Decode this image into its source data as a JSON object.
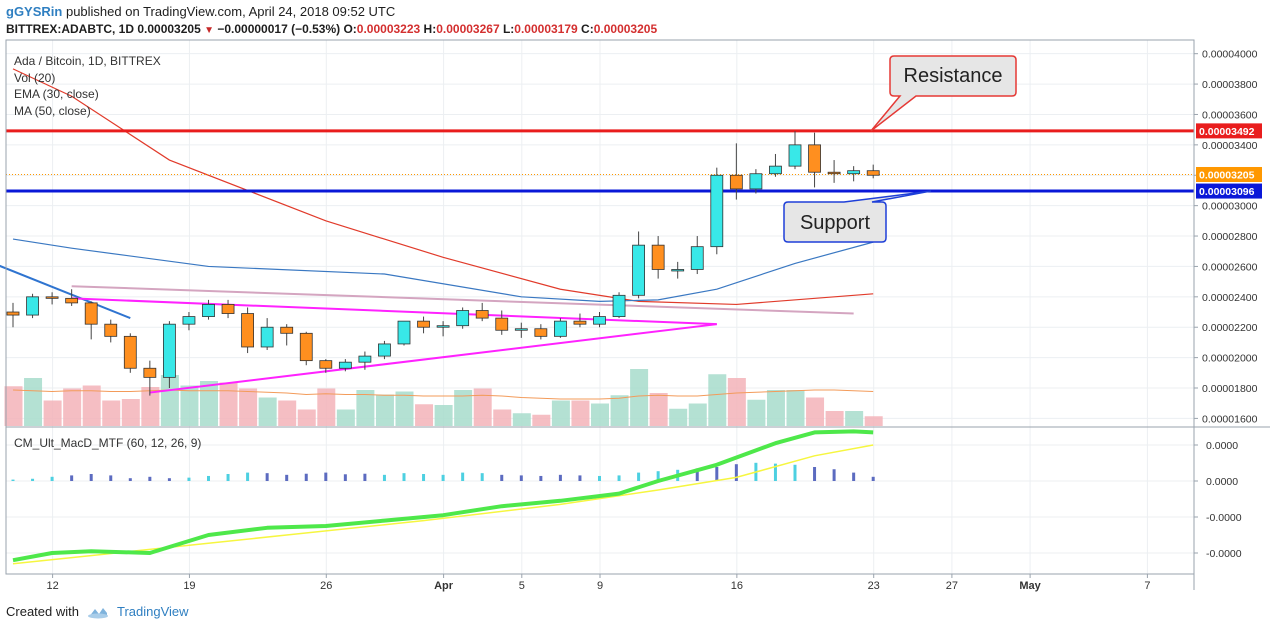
{
  "header": {
    "author": "gGYSRin",
    "published_text": "published on TradingView.com, April 24, 2018 09:52 UTC",
    "symbol": "BITTREX:ADABTC, 1D",
    "last": "0.00003205",
    "change": "−0.00000017 (−0.53%)",
    "o_label": "O:",
    "o_value": "0.00003223",
    "h_label": "H:",
    "h_value": "0.00003267",
    "l_label": "L:",
    "l_value": "0.00003179",
    "c_label": "C:",
    "c_value": "0.00003205"
  },
  "footer": {
    "created_with": "Created with",
    "brand": "TradingView"
  },
  "legend": {
    "title": "Ada / Bitcoin, 1D, BITTREX",
    "vol": "Vol (20)",
    "ema": "EMA (30, close)",
    "ma": "MA (50, close)"
  },
  "chart_data": {
    "type": "candlestick",
    "title": "Ada / Bitcoin, 1D, BITTREX",
    "x_axis": {
      "tick_labels": [
        "12",
        "19",
        "26",
        "Apr",
        "5",
        "9",
        "16",
        "23",
        "27",
        "May",
        "7"
      ],
      "start_date": "2018-03-10",
      "end_date": "2018-05-09"
    },
    "y_axis": {
      "range": [
        1.55e-05,
        4.09e-05
      ],
      "tick_labels": [
        "0.00001600",
        "0.00001800",
        "0.00002000",
        "0.00002200",
        "0.00002400",
        "0.00002600",
        "0.00002800",
        "0.00003000",
        "0.00003200",
        "0.00003400",
        "0.00003600",
        "0.00003800",
        "0.00004000"
      ],
      "tick_values": [
        1.6e-05,
        1.8e-05,
        2e-05,
        2.2e-05,
        2.4e-05,
        2.6e-05,
        2.8e-05,
        3e-05,
        3.2e-05,
        3.4e-05,
        3.6e-05,
        3.8e-05,
        4e-05
      ]
    },
    "price_labels": [
      {
        "text": "0.00003492",
        "value": 3.492e-05,
        "color": "#e91d1d"
      },
      {
        "text": "0.00003205",
        "value": 3.205e-05,
        "color": "#ff9800"
      },
      {
        "text": "0.00003096",
        "value": 3.096e-05,
        "color": "#0a18d8"
      }
    ],
    "candles": [
      {
        "date": "2018-03-10",
        "o": 2.3e-05,
        "h": 2.36e-05,
        "l": 2.2e-05,
        "c": 2.28e-05
      },
      {
        "date": "2018-03-11",
        "o": 2.28e-05,
        "h": 2.42e-05,
        "l": 2.26e-05,
        "c": 2.4e-05
      },
      {
        "date": "2018-03-12",
        "o": 2.4e-05,
        "h": 2.43e-05,
        "l": 2.35e-05,
        "c": 2.39e-05
      },
      {
        "date": "2018-03-13",
        "o": 2.39e-05,
        "h": 2.45e-05,
        "l": 2.34e-05,
        "c": 2.36e-05
      },
      {
        "date": "2018-03-14",
        "o": 2.36e-05,
        "h": 2.37e-05,
        "l": 2.12e-05,
        "c": 2.22e-05
      },
      {
        "date": "2018-03-15",
        "o": 2.22e-05,
        "h": 2.25e-05,
        "l": 2.1e-05,
        "c": 2.14e-05
      },
      {
        "date": "2018-03-16",
        "o": 2.14e-05,
        "h": 2.16e-05,
        "l": 1.9e-05,
        "c": 1.93e-05
      },
      {
        "date": "2018-03-17",
        "o": 1.93e-05,
        "h": 1.98e-05,
        "l": 1.75e-05,
        "c": 1.87e-05
      },
      {
        "date": "2018-03-18",
        "o": 1.87e-05,
        "h": 2.24e-05,
        "l": 1.8e-05,
        "c": 2.22e-05
      },
      {
        "date": "2018-03-19",
        "o": 2.22e-05,
        "h": 2.3e-05,
        "l": 2.18e-05,
        "c": 2.27e-05
      },
      {
        "date": "2018-03-20",
        "o": 2.27e-05,
        "h": 2.38e-05,
        "l": 2.25e-05,
        "c": 2.35e-05
      },
      {
        "date": "2018-03-21",
        "o": 2.35e-05,
        "h": 2.38e-05,
        "l": 2.26e-05,
        "c": 2.29e-05
      },
      {
        "date": "2018-03-22",
        "o": 2.29e-05,
        "h": 2.33e-05,
        "l": 2.03e-05,
        "c": 2.07e-05
      },
      {
        "date": "2018-03-23",
        "o": 2.07e-05,
        "h": 2.26e-05,
        "l": 2.05e-05,
        "c": 2.2e-05
      },
      {
        "date": "2018-03-24",
        "o": 2.2e-05,
        "h": 2.22e-05,
        "l": 2.08e-05,
        "c": 2.16e-05
      },
      {
        "date": "2018-03-25",
        "o": 2.16e-05,
        "h": 2.17e-05,
        "l": 1.95e-05,
        "c": 1.98e-05
      },
      {
        "date": "2018-03-26",
        "o": 1.98e-05,
        "h": 1.99e-05,
        "l": 1.9e-05,
        "c": 1.93e-05
      },
      {
        "date": "2018-03-27",
        "o": 1.93e-05,
        "h": 1.99e-05,
        "l": 1.91e-05,
        "c": 1.97e-05
      },
      {
        "date": "2018-03-28",
        "o": 1.97e-05,
        "h": 2.04e-05,
        "l": 1.92e-05,
        "c": 2.01e-05
      },
      {
        "date": "2018-03-29",
        "o": 2.01e-05,
        "h": 2.11e-05,
        "l": 1.99e-05,
        "c": 2.09e-05
      },
      {
        "date": "2018-03-30",
        "o": 2.09e-05,
        "h": 2.24e-05,
        "l": 2.08e-05,
        "c": 2.24e-05
      },
      {
        "date": "2018-03-31",
        "o": 2.24e-05,
        "h": 2.27e-05,
        "l": 2.16e-05,
        "c": 2.2e-05
      },
      {
        "date": "2018-04-01",
        "o": 2.2e-05,
        "h": 2.24e-05,
        "l": 2.14e-05,
        "c": 2.21e-05
      },
      {
        "date": "2018-04-02",
        "o": 2.21e-05,
        "h": 2.33e-05,
        "l": 2.19e-05,
        "c": 2.31e-05
      },
      {
        "date": "2018-04-03",
        "o": 2.31e-05,
        "h": 2.36e-05,
        "l": 2.24e-05,
        "c": 2.26e-05
      },
      {
        "date": "2018-04-04",
        "o": 2.26e-05,
        "h": 2.31e-05,
        "l": 2.15e-05,
        "c": 2.18e-05
      },
      {
        "date": "2018-04-05",
        "o": 2.18e-05,
        "h": 2.23e-05,
        "l": 2.13e-05,
        "c": 2.19e-05
      },
      {
        "date": "2018-04-06",
        "o": 2.19e-05,
        "h": 2.22e-05,
        "l": 2.12e-05,
        "c": 2.14e-05
      },
      {
        "date": "2018-04-07",
        "o": 2.14e-05,
        "h": 2.26e-05,
        "l": 2.13e-05,
        "c": 2.24e-05
      },
      {
        "date": "2018-04-08",
        "o": 2.24e-05,
        "h": 2.29e-05,
        "l": 2.2e-05,
        "c": 2.22e-05
      },
      {
        "date": "2018-04-09",
        "o": 2.22e-05,
        "h": 2.3e-05,
        "l": 2.2e-05,
        "c": 2.27e-05
      },
      {
        "date": "2018-04-10",
        "o": 2.27e-05,
        "h": 2.43e-05,
        "l": 2.26e-05,
        "c": 2.41e-05
      },
      {
        "date": "2018-04-11",
        "o": 2.41e-05,
        "h": 2.83e-05,
        "l": 2.39e-05,
        "c": 2.74e-05
      },
      {
        "date": "2018-04-12",
        "o": 2.74e-05,
        "h": 2.8e-05,
        "l": 2.52e-05,
        "c": 2.58e-05
      },
      {
        "date": "2018-04-13",
        "o": 2.58e-05,
        "h": 2.63e-05,
        "l": 2.52e-05,
        "c": 2.58e-05
      },
      {
        "date": "2018-04-14",
        "o": 2.58e-05,
        "h": 2.8e-05,
        "l": 2.55e-05,
        "c": 2.73e-05
      },
      {
        "date": "2018-04-15",
        "o": 2.73e-05,
        "h": 3.25e-05,
        "l": 2.68e-05,
        "c": 3.2e-05
      },
      {
        "date": "2018-04-16",
        "o": 3.2e-05,
        "h": 3.41e-05,
        "l": 3.04e-05,
        "c": 3.11e-05
      },
      {
        "date": "2018-04-17",
        "o": 3.11e-05,
        "h": 3.24e-05,
        "l": 3.08e-05,
        "c": 3.21e-05
      },
      {
        "date": "2018-04-18",
        "o": 3.21e-05,
        "h": 3.34e-05,
        "l": 3.19e-05,
        "c": 3.26e-05
      },
      {
        "date": "2018-04-19",
        "o": 3.26e-05,
        "h": 3.49e-05,
        "l": 3.24e-05,
        "c": 3.4e-05
      },
      {
        "date": "2018-04-20",
        "o": 3.4e-05,
        "h": 3.48e-05,
        "l": 3.12e-05,
        "c": 3.22e-05
      },
      {
        "date": "2018-04-21",
        "o": 3.22e-05,
        "h": 3.3e-05,
        "l": 3.15e-05,
        "c": 3.21e-05
      },
      {
        "date": "2018-04-22",
        "o": 3.21e-05,
        "h": 3.26e-05,
        "l": 3.16e-05,
        "c": 3.23e-05
      },
      {
        "date": "2018-04-23",
        "o": 3.23e-05,
        "h": 3.27e-05,
        "l": 3.18e-05,
        "c": 3.2e-05
      }
    ],
    "volume": [
      0.53,
      0.64,
      0.34,
      0.5,
      0.54,
      0.34,
      0.36,
      0.52,
      0.68,
      0.54,
      0.6,
      0.58,
      0.5,
      0.38,
      0.34,
      0.22,
      0.5,
      0.22,
      0.48,
      0.42,
      0.46,
      0.29,
      0.28,
      0.48,
      0.5,
      0.22,
      0.17,
      0.15,
      0.34,
      0.34,
      0.3,
      0.41,
      0.76,
      0.44,
      0.23,
      0.3,
      0.69,
      0.64,
      0.35,
      0.48,
      0.48,
      0.38,
      0.2,
      0.2,
      0.13
    ],
    "ema30": [
      [
        0,
        2.78e-05
      ],
      [
        3,
        2.72e-05
      ],
      [
        10,
        2.6e-05
      ],
      [
        19,
        2.55e-05
      ],
      [
        26,
        2.4e-05
      ],
      [
        30,
        2.37e-05
      ],
      [
        33,
        2.38e-05
      ],
      [
        36,
        2.45e-05
      ],
      [
        40,
        2.62e-05
      ],
      [
        44,
        2.76e-05
      ]
    ],
    "ma50": [
      [
        0,
        3.9e-05
      ],
      [
        3,
        3.72e-05
      ],
      [
        8,
        3.3e-05
      ],
      [
        16,
        2.9e-05
      ],
      [
        22,
        2.66e-05
      ],
      [
        28,
        2.45e-05
      ],
      [
        32,
        2.37e-05
      ],
      [
        37,
        2.35e-05
      ],
      [
        44,
        2.42e-05
      ]
    ],
    "macd_series": {
      "name": "CM_Ult_MacD_MTF (60, 12, 26, 9)",
      "y_tick_labels": [
        "0.0000",
        "0.0000",
        "-0.0000",
        "-0.0000"
      ],
      "macd": [
        [
          0,
          -2.2
        ],
        [
          2,
          -2.0
        ],
        [
          4,
          -1.95
        ],
        [
          7,
          -2.0
        ],
        [
          10,
          -1.5
        ],
        [
          13,
          -1.3
        ],
        [
          16,
          -1.25
        ],
        [
          19,
          -1.1
        ],
        [
          22,
          -0.95
        ],
        [
          25,
          -0.7
        ],
        [
          28,
          -0.55
        ],
        [
          31,
          -0.35
        ],
        [
          33,
          0.0
        ],
        [
          36,
          0.45
        ],
        [
          39,
          1.05
        ],
        [
          41,
          1.35
        ],
        [
          43,
          1.38
        ],
        [
          44,
          1.35
        ]
      ],
      "signal": [
        [
          0,
          -2.3
        ],
        [
          7,
          -1.9
        ],
        [
          14,
          -1.5
        ],
        [
          21,
          -1.1
        ],
        [
          28,
          -0.65
        ],
        [
          33,
          -0.25
        ],
        [
          37,
          0.1
        ],
        [
          41,
          0.7
        ],
        [
          44,
          1.0
        ]
      ],
      "histogram": [
        0.05,
        0.08,
        0.15,
        0.2,
        0.25,
        0.2,
        0.1,
        0.15,
        0.1,
        0.12,
        0.18,
        0.25,
        0.3,
        0.28,
        0.22,
        0.26,
        0.3,
        0.24,
        0.26,
        0.22,
        0.28,
        0.25,
        0.22,
        0.3,
        0.28,
        0.22,
        0.2,
        0.18,
        0.22,
        0.2,
        0.18,
        0.2,
        0.3,
        0.35,
        0.4,
        0.45,
        0.5,
        0.6,
        0.65,
        0.62,
        0.58,
        0.5,
        0.42,
        0.3,
        0.15
      ],
      "histogram_colors": [
        "#4dd0e1",
        "#4dd0e1",
        "#4dd0e1",
        "#5c6bc0",
        "#5c6bc0",
        "#5c6bc0",
        "#5c6bc0",
        "#5c6bc0",
        "#5c6bc0",
        "#4dd0e1",
        "#4dd0e1",
        "#4dd0e1",
        "#4dd0e1",
        "#5c6bc0",
        "#5c6bc0",
        "#5c6bc0",
        "#5c6bc0",
        "#5c6bc0",
        "#5c6bc0",
        "#4dd0e1",
        "#4dd0e1",
        "#4dd0e1",
        "#4dd0e1",
        "#4dd0e1",
        "#4dd0e1",
        "#5c6bc0",
        "#5c6bc0",
        "#5c6bc0",
        "#5c6bc0",
        "#5c6bc0",
        "#4dd0e1",
        "#4dd0e1",
        "#4dd0e1",
        "#4dd0e1",
        "#4dd0e1",
        "#5c6bc0",
        "#5c6bc0",
        "#5c6bc0",
        "#4dd0e1",
        "#4dd0e1",
        "#4dd0e1",
        "#5c6bc0",
        "#5c6bc0",
        "#5c6bc0",
        "#5c6bc0"
      ]
    },
    "annotations": {
      "resistance": {
        "label": "Resistance",
        "value": 3.492e-05
      },
      "support": {
        "label": "Support",
        "value": 3.096e-05
      },
      "trendlines": [
        {
          "color": "#2f74d0",
          "from": [
            -1,
            2.62e-05
          ],
          "to": [
            6,
            2.26e-05
          ]
        },
        {
          "color": "#ff22ff",
          "from": [
            3,
            2.39e-05
          ],
          "to": [
            36,
            2.22e-05
          ]
        },
        {
          "color": "#ff22ff",
          "from": [
            7,
            1.77e-05
          ],
          "to": [
            36,
            2.22e-05
          ]
        },
        {
          "color": "#d4a5c0",
          "from": [
            3,
            2.47e-05
          ],
          "to": [
            43,
            2.29e-05
          ]
        }
      ]
    },
    "colors": {
      "up": "#38e8e8",
      "down": "#ff8f1f",
      "resistance": "#e91d1d",
      "support": "#0a18d8",
      "ema": "#3a78c2",
      "ma": "#e13b2b",
      "macd": "#4ee84a",
      "signal": "#f6f640"
    }
  }
}
